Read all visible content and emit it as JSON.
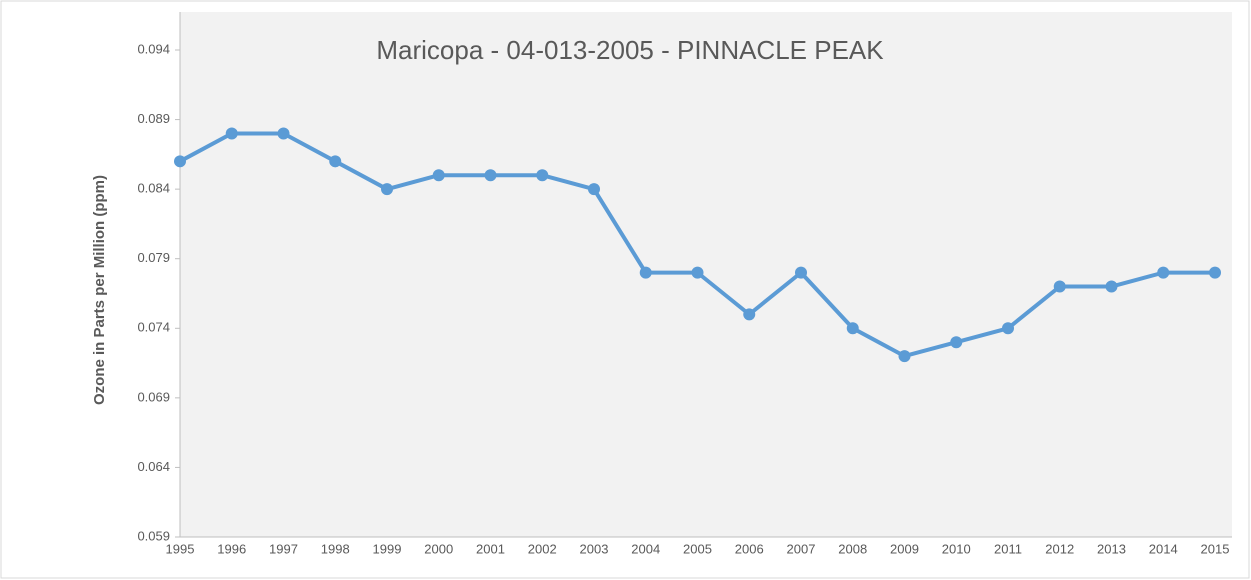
{
  "chart_data": {
    "type": "line",
    "title": "Maricopa - 04-013-2005 - PINNACLE PEAK",
    "y_label": "Ozone in Parts per Million (ppm)",
    "categories": [
      "1995",
      "1996",
      "1997",
      "1998",
      "1999",
      "2000",
      "2001",
      "2002",
      "2003",
      "2004",
      "2005",
      "2006",
      "2007",
      "2008",
      "2009",
      "2010",
      "2011",
      "2012",
      "2013",
      "2014",
      "2015"
    ],
    "values": [
      0.086,
      0.088,
      0.088,
      0.086,
      0.084,
      0.085,
      0.085,
      0.085,
      0.084,
      0.078,
      0.078,
      0.075,
      0.078,
      0.074,
      0.072,
      0.073,
      0.074,
      0.077,
      0.077,
      0.078,
      0.078
    ],
    "color": "#5b9bd5",
    "ylim": [
      0.059,
      0.094
    ],
    "yticks": [
      0.059,
      0.064,
      0.069,
      0.074,
      0.079,
      0.084,
      0.089,
      0.094
    ],
    "grid": false
  }
}
